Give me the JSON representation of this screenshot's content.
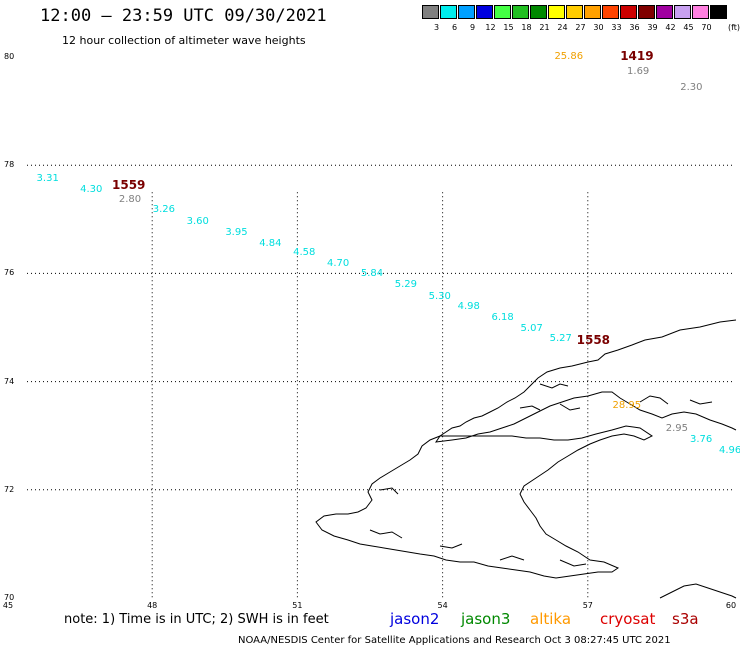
{
  "title": "12:00 — 23:59 UTC 09/30/2021",
  "subtitle": "12 hour collection of altimeter wave heights",
  "legend": {
    "unit": "(ft)",
    "bins": [
      {
        "label": "3",
        "color": "#808080"
      },
      {
        "label": "6",
        "color": "#00eeee"
      },
      {
        "label": "9",
        "color": "#00a0ff"
      },
      {
        "label": "12",
        "color": "#0000e0"
      },
      {
        "label": "15",
        "color": "#44ff44"
      },
      {
        "label": "18",
        "color": "#22c022"
      },
      {
        "label": "21",
        "color": "#008800"
      },
      {
        "label": "24",
        "color": "#ffff00"
      },
      {
        "label": "27",
        "color": "#ffcc00"
      },
      {
        "label": "30",
        "color": "#ffa000"
      },
      {
        "label": "33",
        "color": "#ff4400"
      },
      {
        "label": "36",
        "color": "#cc0000"
      },
      {
        "label": "39",
        "color": "#800000"
      },
      {
        "label": "42",
        "color": "#a000a0"
      },
      {
        "label": "45",
        "color": "#c8a0f0"
      },
      {
        "label": "70",
        "color": "#ff80e0"
      },
      {
        "label": "",
        "color": "#000000"
      }
    ]
  },
  "map": {
    "lon_range": [
      45,
      60
    ],
    "lat_range": [
      70,
      80
    ],
    "x_ticks": [
      "45",
      "48",
      "51",
      "54",
      "57",
      "60"
    ],
    "y_ticks": [
      "80",
      "78",
      "76",
      "74",
      "72",
      "70"
    ]
  },
  "observations": [
    {
      "lon": 45.9,
      "lat": 77.75,
      "value": "3.31",
      "color": "#00dede"
    },
    {
      "lon": 46.8,
      "lat": 77.55,
      "value": "4.30",
      "color": "#00dede"
    },
    {
      "lon": 47.6,
      "lat": 77.35,
      "value": "2.80",
      "color": "#808080"
    },
    {
      "lon": 48.3,
      "lat": 77.17,
      "value": "3.26",
      "color": "#00dede"
    },
    {
      "lon": 49.0,
      "lat": 76.95,
      "value": "3.60",
      "color": "#00dede"
    },
    {
      "lon": 49.8,
      "lat": 76.75,
      "value": "3.95",
      "color": "#00dede"
    },
    {
      "lon": 50.5,
      "lat": 76.55,
      "value": "4.84",
      "color": "#00dede"
    },
    {
      "lon": 51.2,
      "lat": 76.38,
      "value": "4.58",
      "color": "#00dede"
    },
    {
      "lon": 51.9,
      "lat": 76.17,
      "value": "4.70",
      "color": "#00dede"
    },
    {
      "lon": 52.6,
      "lat": 75.98,
      "value": "5.84",
      "color": "#00dede"
    },
    {
      "lon": 53.3,
      "lat": 75.78,
      "value": "5.29",
      "color": "#00dede"
    },
    {
      "lon": 54.0,
      "lat": 75.57,
      "value": "5.30",
      "color": "#00dede"
    },
    {
      "lon": 54.6,
      "lat": 75.38,
      "value": "4.98",
      "color": "#00dede"
    },
    {
      "lon": 55.3,
      "lat": 75.18,
      "value": "6.18",
      "color": "#00dede"
    },
    {
      "lon": 55.9,
      "lat": 74.98,
      "value": "5.07",
      "color": "#00dede"
    },
    {
      "lon": 56.5,
      "lat": 74.78,
      "value": "5.27",
      "color": "#00dede"
    },
    {
      "lon": 57.8,
      "lat": 73.55,
      "value": "28.95",
      "color": "#f0a000"
    },
    {
      "lon": 58.9,
      "lat": 73.12,
      "value": "2.95",
      "color": "#808080"
    },
    {
      "lon": 59.4,
      "lat": 72.92,
      "value": "3.76",
      "color": "#00dede"
    },
    {
      "lon": 60.0,
      "lat": 72.72,
      "value": "4.96",
      "color": "#00dede"
    },
    {
      "lon": 56.6,
      "lat": 80.0,
      "value": "25.86",
      "color": "#f0a000"
    },
    {
      "lon": 58.1,
      "lat": 79.73,
      "value": "1.69",
      "color": "#808080"
    },
    {
      "lon": 59.2,
      "lat": 79.42,
      "value": "2.30",
      "color": "#808080"
    }
  ],
  "times": [
    {
      "lon": 47.5,
      "lat": 77.62,
      "value": "1559"
    },
    {
      "lon": 57.1,
      "lat": 74.75,
      "value": "1558"
    },
    {
      "lon": 58.0,
      "lat": 80.0,
      "value": "1419"
    }
  ],
  "note": "note:  1) Time is in UTC;  2) SWH is in feet",
  "satellites": [
    {
      "name": "jason2",
      "color": "#0000dd"
    },
    {
      "name": "jason3",
      "color": "#008800"
    },
    {
      "name": "altika",
      "color": "#ff9900"
    },
    {
      "name": "cryosat",
      "color": "#dd0000"
    },
    {
      "name": "s3a",
      "color": "#aa0000"
    }
  ],
  "credit": "NOAA/NESDIS Center for Satellite Applications and Research    Oct  3 08:27:45 UTC 2021"
}
